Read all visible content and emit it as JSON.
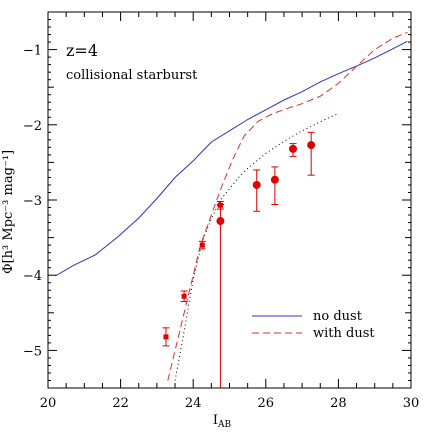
{
  "chart_data": {
    "type": "line",
    "annotations": [
      "z=4",
      "collisional starburst"
    ],
    "xlabel": "I",
    "xlabel_sub": "AB",
    "ylabel": "Φ[h³ Mpc⁻³ mag⁻¹]",
    "xlim": [
      20,
      30
    ],
    "ylim": [
      -5.5,
      -0.5
    ],
    "xticks": [
      20,
      22,
      24,
      26,
      28,
      30
    ],
    "yticks": [
      -1,
      -2,
      -3,
      -4,
      -5
    ],
    "legend": {
      "placement": "bottom-right"
    },
    "colors": {
      "no_dust": "#3030c8",
      "with_dust": "#e03030",
      "observed": "#e00000",
      "dotted": "#000000"
    },
    "series": [
      {
        "name": "no dust",
        "style": "solid",
        "x": [
          20.2,
          20.7,
          21.3,
          21.9,
          22.5,
          23.0,
          23.5,
          24.0,
          24.5,
          25.0,
          25.5,
          26.0,
          26.5,
          27.0,
          27.5,
          28.0,
          28.5,
          29.0,
          29.5,
          29.9
        ],
        "y": [
          -4.01,
          -3.87,
          -3.73,
          -3.5,
          -3.24,
          -2.98,
          -2.7,
          -2.48,
          -2.23,
          -2.08,
          -1.93,
          -1.8,
          -1.67,
          -1.56,
          -1.43,
          -1.32,
          -1.22,
          -1.11,
          -0.99,
          -0.89
        ]
      },
      {
        "name": "with dust",
        "style": "dashed",
        "x": [
          23.3,
          23.6,
          23.9,
          24.2,
          24.5,
          24.8,
          25.1,
          25.4,
          25.8,
          26.2,
          26.6,
          27.0,
          27.5,
          28.0,
          28.5,
          29.0,
          29.5,
          29.9
        ],
        "y": [
          -5.4,
          -4.8,
          -4.2,
          -3.6,
          -3.2,
          -2.8,
          -2.45,
          -2.15,
          -1.95,
          -1.85,
          -1.78,
          -1.72,
          -1.62,
          -1.45,
          -1.22,
          -1.0,
          -0.85,
          -0.77
        ]
      },
      {
        "style": "dotted",
        "x": [
          23.5,
          23.75,
          24.0,
          24.25,
          24.5,
          24.75,
          25.0,
          25.25,
          25.5,
          26.0,
          26.5,
          27.0,
          27.5,
          28.0
        ],
        "y": [
          -5.4,
          -4.75,
          -4.05,
          -3.55,
          -3.25,
          -3.0,
          -2.85,
          -2.7,
          -2.58,
          -2.38,
          -2.22,
          -2.08,
          -1.96,
          -1.85
        ]
      }
    ],
    "points": [
      {
        "x": 23.25,
        "y": -4.82,
        "yerr_low": 0.12,
        "yerr_high": 0.12,
        "marker": "square"
      },
      {
        "x": 23.75,
        "y": -4.28,
        "yerr_low": 0.07,
        "yerr_high": 0.07,
        "marker": "square"
      },
      {
        "x": 24.25,
        "y": -3.6,
        "yerr_low": 0.05,
        "yerr_high": 0.05,
        "marker": "square"
      },
      {
        "x": 24.75,
        "y": -3.07,
        "yerr_low": 0.05,
        "yerr_high": 0.05,
        "marker": "square"
      },
      {
        "x": 24.75,
        "y": -3.28,
        "yerr_low": 2.3,
        "yerr_high": 0.22,
        "marker": "circle"
      },
      {
        "x": 25.75,
        "y": -2.8,
        "yerr_low": 0.35,
        "yerr_high": 0.2,
        "marker": "circle"
      },
      {
        "x": 26.25,
        "y": -2.73,
        "yerr_low": 0.33,
        "yerr_high": 0.17,
        "marker": "circle"
      },
      {
        "x": 26.75,
        "y": -2.32,
        "yerr_low": 0.1,
        "yerr_high": 0.07,
        "marker": "circle"
      },
      {
        "x": 27.25,
        "y": -2.27,
        "yerr_low": 0.4,
        "yerr_high": 0.17,
        "marker": "circle"
      }
    ]
  }
}
